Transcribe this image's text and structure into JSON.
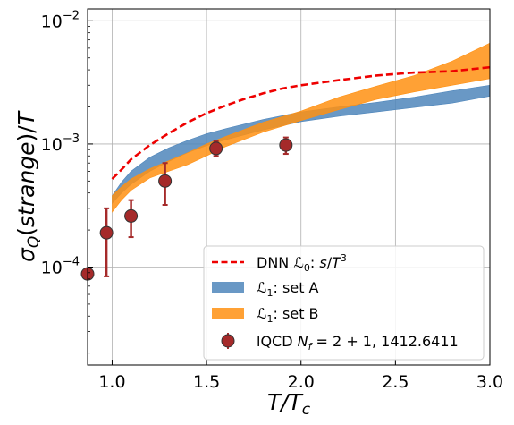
{
  "chart_data": {
    "type": "line",
    "title": "",
    "xlabel": "T/T_c",
    "ylabel": "σ_Q(strange)/T",
    "xlim": [
      0.87,
      3.0
    ],
    "ylim": [
      1.6e-05,
      0.0125
    ],
    "yscale": "log",
    "grid": true,
    "legend_position": "bottom-right",
    "x_ticks": [
      1.0,
      1.5,
      2.0,
      2.5,
      3.0
    ],
    "x_tick_labels": [
      "1.0",
      "1.5",
      "2.0",
      "2.5",
      "3.0"
    ],
    "y_ticks": [
      0.0001,
      0.001,
      0.01
    ],
    "y_tick_labels": [
      {
        "base": "10",
        "exp": "−4"
      },
      {
        "base": "10",
        "exp": "−3"
      },
      {
        "base": "10",
        "exp": "−2"
      }
    ],
    "series": [
      {
        "name": "DNN ℒ₀: s/T³",
        "kind": "dashed-line",
        "color": "#ee0000",
        "x": [
          1.0,
          1.05,
          1.1,
          1.2,
          1.3,
          1.4,
          1.5,
          1.6,
          1.7,
          1.8,
          1.9,
          2.0,
          2.2,
          2.4,
          2.6,
          2.8,
          3.0
        ],
        "y": [
          0.00052,
          0.00062,
          0.00075,
          0.00098,
          0.00122,
          0.0015,
          0.00178,
          0.00205,
          0.00232,
          0.00258,
          0.00282,
          0.003,
          0.0033,
          0.0036,
          0.0038,
          0.0039,
          0.0042
        ]
      },
      {
        "name": "ℒ₁: set A",
        "kind": "band",
        "color": "#4f86bb",
        "x": [
          1.0,
          1.05,
          1.1,
          1.2,
          1.3,
          1.4,
          1.5,
          1.6,
          1.8,
          2.0,
          2.2,
          2.4,
          2.6,
          2.8,
          3.0
        ],
        "y_low": [
          0.00033,
          0.0004,
          0.00047,
          0.0006,
          0.00072,
          0.00085,
          0.00097,
          0.00108,
          0.0013,
          0.00152,
          0.00168,
          0.00182,
          0.00198,
          0.00215,
          0.00245
        ],
        "y_high": [
          0.00038,
          0.00049,
          0.0006,
          0.00078,
          0.00093,
          0.00107,
          0.00121,
          0.00133,
          0.00158,
          0.00182,
          0.002,
          0.00218,
          0.0024,
          0.0027,
          0.003
        ]
      },
      {
        "name": "ℒ₁: set B",
        "kind": "band",
        "color": "#ff9012",
        "x": [
          1.0,
          1.05,
          1.1,
          1.2,
          1.3,
          1.4,
          1.5,
          1.6,
          1.8,
          2.0,
          2.2,
          2.4,
          2.6,
          2.8,
          3.0
        ],
        "y_low": [
          0.00028,
          0.00035,
          0.00042,
          0.00053,
          0.0006,
          0.00068,
          0.0008,
          0.00095,
          0.00125,
          0.00155,
          0.0019,
          0.0023,
          0.00265,
          0.003,
          0.0034
        ],
        "y_high": [
          0.00038,
          0.00045,
          0.00052,
          0.00063,
          0.00073,
          0.00085,
          0.001,
          0.00115,
          0.0015,
          0.00185,
          0.0024,
          0.00295,
          0.0036,
          0.0047,
          0.0066
        ]
      },
      {
        "name": "lQCD N_f = 2 + 1, 1412.6411",
        "kind": "errorbar",
        "color": "#a52a2a",
        "x": [
          0.87,
          0.97,
          1.1,
          1.28,
          1.55,
          1.92
        ],
        "y": [
          8.8e-05,
          0.00019,
          0.00026,
          0.0005,
          0.00092,
          0.00098
        ],
        "y_err_low": [
          7.5e-06,
          0.000106,
          8.5e-05,
          0.00018,
          0.00012,
          0.00015
        ],
        "y_err_high": [
          7.5e-06,
          0.00011,
          9e-05,
          0.0002,
          0.00013,
          0.00015
        ]
      }
    ],
    "legend": [
      {
        "text": "DNN ℒ₀: s/T³",
        "series": 0
      },
      {
        "text": "ℒ₁: set A",
        "series": 1
      },
      {
        "text": "ℒ₁: set B",
        "series": 2
      },
      {
        "text": "lQCD N_f = 2 + 1, 1412.6411",
        "series": 3
      }
    ]
  }
}
